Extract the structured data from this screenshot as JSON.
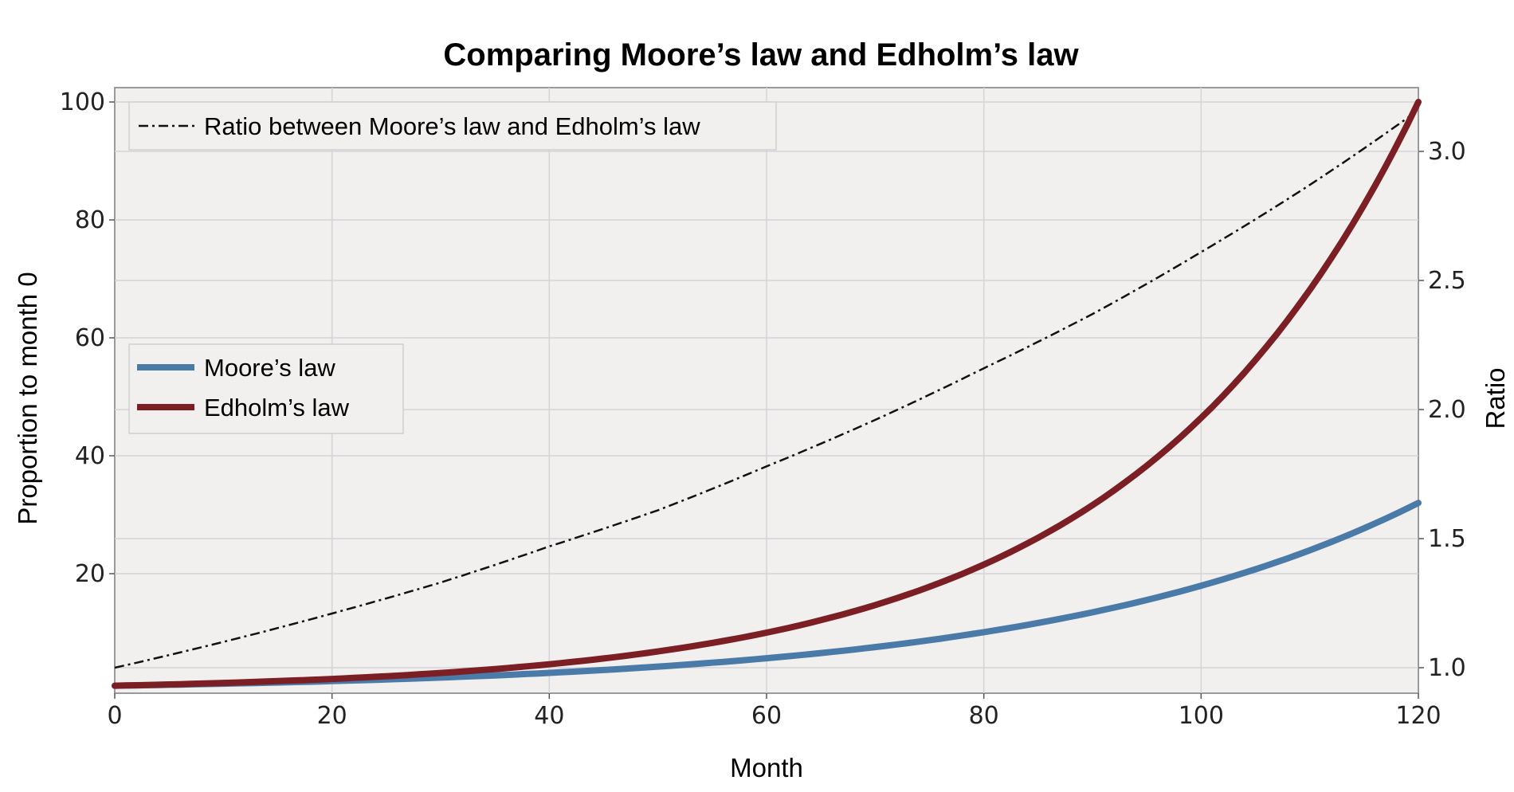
{
  "chart_data": {
    "type": "line",
    "title": "Comparing Moore’s law and Edholm’s law",
    "xlabel": "Month",
    "ylabel": "Proportion to month 0",
    "y2label": "Ratio",
    "xlim": [
      0,
      120
    ],
    "ylim": [
      0,
      100
    ],
    "y2lim": [
      0.9,
      3.25
    ],
    "x_ticks": [
      0,
      20,
      40,
      60,
      80,
      100,
      120
    ],
    "y_ticks": [
      20,
      40,
      60,
      80,
      100
    ],
    "y2_ticks": [
      "1.0",
      "1.5",
      "2.0",
      "2.5",
      "3.0"
    ],
    "grid": true,
    "x": [
      0,
      10,
      20,
      30,
      40,
      50,
      60,
      70,
      80,
      90,
      100,
      110,
      120
    ],
    "series": [
      {
        "name": "Moore’s law",
        "axis": "left",
        "color": "#4a7aa8",
        "style": "solid",
        "values": [
          1.0,
          1.34,
          1.78,
          2.38,
          3.17,
          4.24,
          5.66,
          7.55,
          10.08,
          13.45,
          17.96,
          23.97,
          32.0
        ]
      },
      {
        "name": "Edholm’s law",
        "axis": "right-scale-left",
        "color": "#7b1f24",
        "style": "solid",
        "values": [
          1.0,
          1.47,
          2.15,
          3.16,
          4.64,
          6.81,
          10.0,
          14.68,
          21.54,
          31.62,
          46.42,
          68.13,
          100.0
        ]
      },
      {
        "name": "Ratio between Moore’s law and Edholm’s law",
        "axis": "right",
        "color": "#111111",
        "style": "dashdot",
        "values": [
          1.0,
          1.1,
          1.21,
          1.33,
          1.47,
          1.61,
          1.78,
          1.96,
          2.16,
          2.37,
          2.61,
          2.87,
          3.16
        ]
      }
    ],
    "legends": [
      {
        "placement": "upper-left",
        "entries": [
          "Ratio between Moore’s law and Edholm’s law"
        ]
      },
      {
        "placement": "center-left",
        "entries": [
          "Moore’s law",
          "Edholm’s law"
        ]
      }
    ]
  }
}
